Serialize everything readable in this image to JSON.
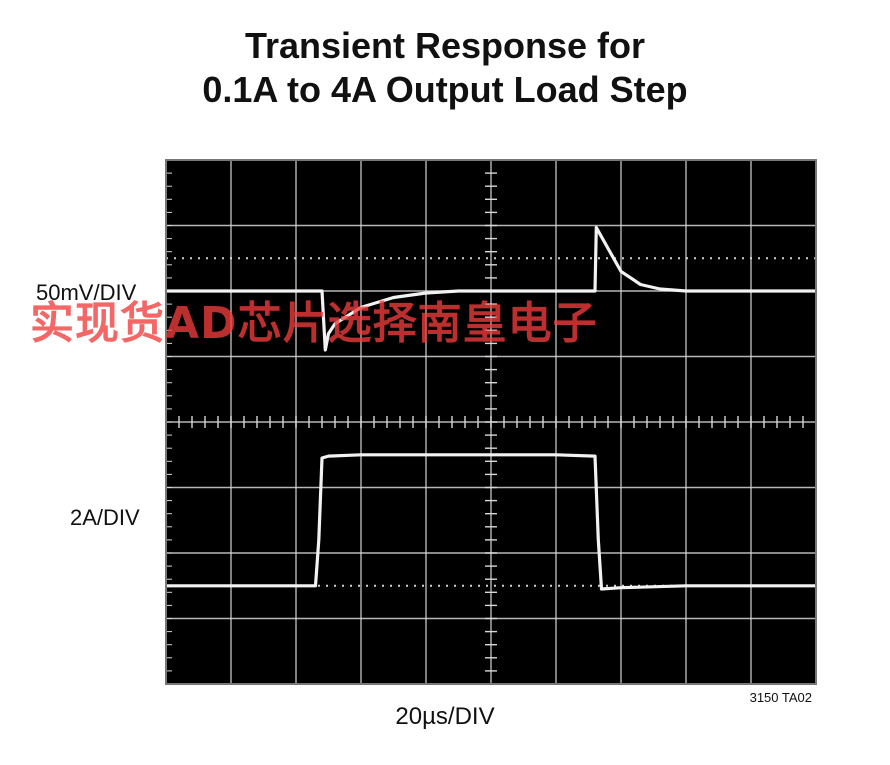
{
  "title_line1": "Transient Response for",
  "title_line2": "0.1A to 4A Output Load Step",
  "watermark": "实现货AD芯片选择南皇电子",
  "chart_data": {
    "type": "line",
    "title": "Transient Response for 0.1A to 4A Output Load Step",
    "xlabel": "20µs/DIV",
    "divisions": {
      "x": 10,
      "y": 8
    },
    "grid": true,
    "background": "#000000",
    "trace_color": "#f2f2f2",
    "series": [
      {
        "name": "50mV/DIV",
        "x": [
          0,
          2.4,
          2.45,
          2.5,
          2.6,
          3.0,
          3.5,
          4.0,
          4.5,
          5.0,
          5.5,
          6.0,
          6.5,
          6.6,
          6.62,
          6.8,
          7.0,
          7.3,
          7.6,
          8.0,
          9.0,
          10.0
        ],
        "y": [
          6.0,
          6.0,
          5.1,
          5.35,
          5.5,
          5.75,
          5.9,
          5.97,
          6.0,
          6.0,
          6.0,
          6.0,
          6.0,
          6.0,
          6.97,
          6.65,
          6.3,
          6.1,
          6.03,
          6.0,
          6.0,
          6.0
        ]
      },
      {
        "name": "2A/DIV",
        "x": [
          0,
          2.3,
          2.35,
          2.4,
          2.5,
          3.0,
          4.0,
          5.0,
          6.0,
          6.6,
          6.65,
          6.7,
          7.0,
          8.0,
          9.0,
          10.0
        ],
        "y": [
          1.5,
          1.5,
          2.2,
          3.45,
          3.48,
          3.5,
          3.5,
          3.5,
          3.5,
          3.48,
          2.2,
          1.45,
          1.47,
          1.5,
          1.5,
          1.5
        ]
      }
    ],
    "channel_labels": [
      "50mV/DIV",
      "2A/DIV"
    ],
    "part_number": "3150 TA02"
  }
}
